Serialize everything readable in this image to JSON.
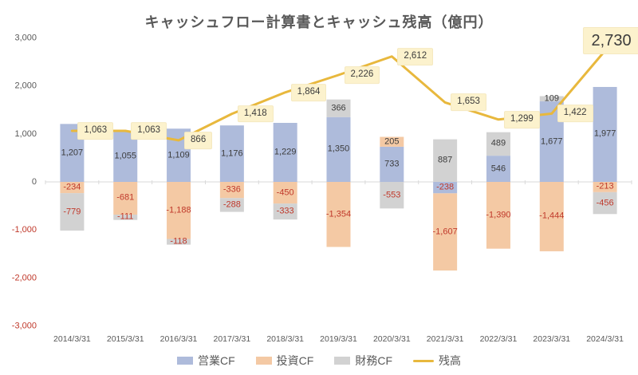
{
  "title": "キャッシュフロー計算書とキャッシュ残高（億円）",
  "colors": {
    "operating_cf": "#aebbdb",
    "investing_cf": "#f4c9a4",
    "financing_cf": "#d2d2d2",
    "balance_line": "#e8b83d",
    "callout_bg": "#fcf2cd",
    "positive_text": "#3c3c3c",
    "negative_text": "#c0392b",
    "axis_text": "#595959",
    "axis_line": "#d9d9d9"
  },
  "chart_data": {
    "type": "bar",
    "subtype": "stacked-bar-with-line",
    "title": "キャッシュフロー計算書とキャッシュ残高（億円）",
    "categories": [
      "2014/3/31",
      "2015/3/31",
      "2016/3/31",
      "2017/3/31",
      "2018/3/31",
      "2019/3/31",
      "2020/3/31",
      "2021/3/31",
      "2022/3/31",
      "2023/3/31",
      "2024/3/31"
    ],
    "series": [
      {
        "name": "営業CF",
        "kind": "bar",
        "color": "#aebbdb",
        "values": [
          1207,
          1055,
          1109,
          1176,
          1229,
          1350,
          733,
          -238,
          546,
          1677,
          1977
        ]
      },
      {
        "name": "投資CF",
        "kind": "bar",
        "color": "#f4c9a4",
        "values": [
          -234,
          -681,
          -1188,
          -336,
          -450,
          -1354,
          205,
          -1607,
          -1390,
          -1444,
          -213
        ]
      },
      {
        "name": "財務CF",
        "kind": "bar",
        "color": "#d2d2d2",
        "values": [
          -779,
          -111,
          -118,
          -288,
          -333,
          366,
          -553,
          887,
          489,
          109,
          -456
        ]
      },
      {
        "name": "残高",
        "kind": "line",
        "color": "#e8b83d",
        "values": [
          1063,
          1063,
          866,
          1418,
          1864,
          2226,
          2612,
          1653,
          1299,
          1422,
          2730
        ]
      }
    ],
    "xlabel": "",
    "ylabel": "",
    "ylim": [
      -3000,
      3000
    ],
    "ytick_step": 1000,
    "grid": false,
    "legend_position": "bottom",
    "stacked": true,
    "bar_label_position": "center",
    "balance_label_position": "right",
    "balance_label_last_emphasized": true,
    "negative_values_shown_in_red": true
  }
}
